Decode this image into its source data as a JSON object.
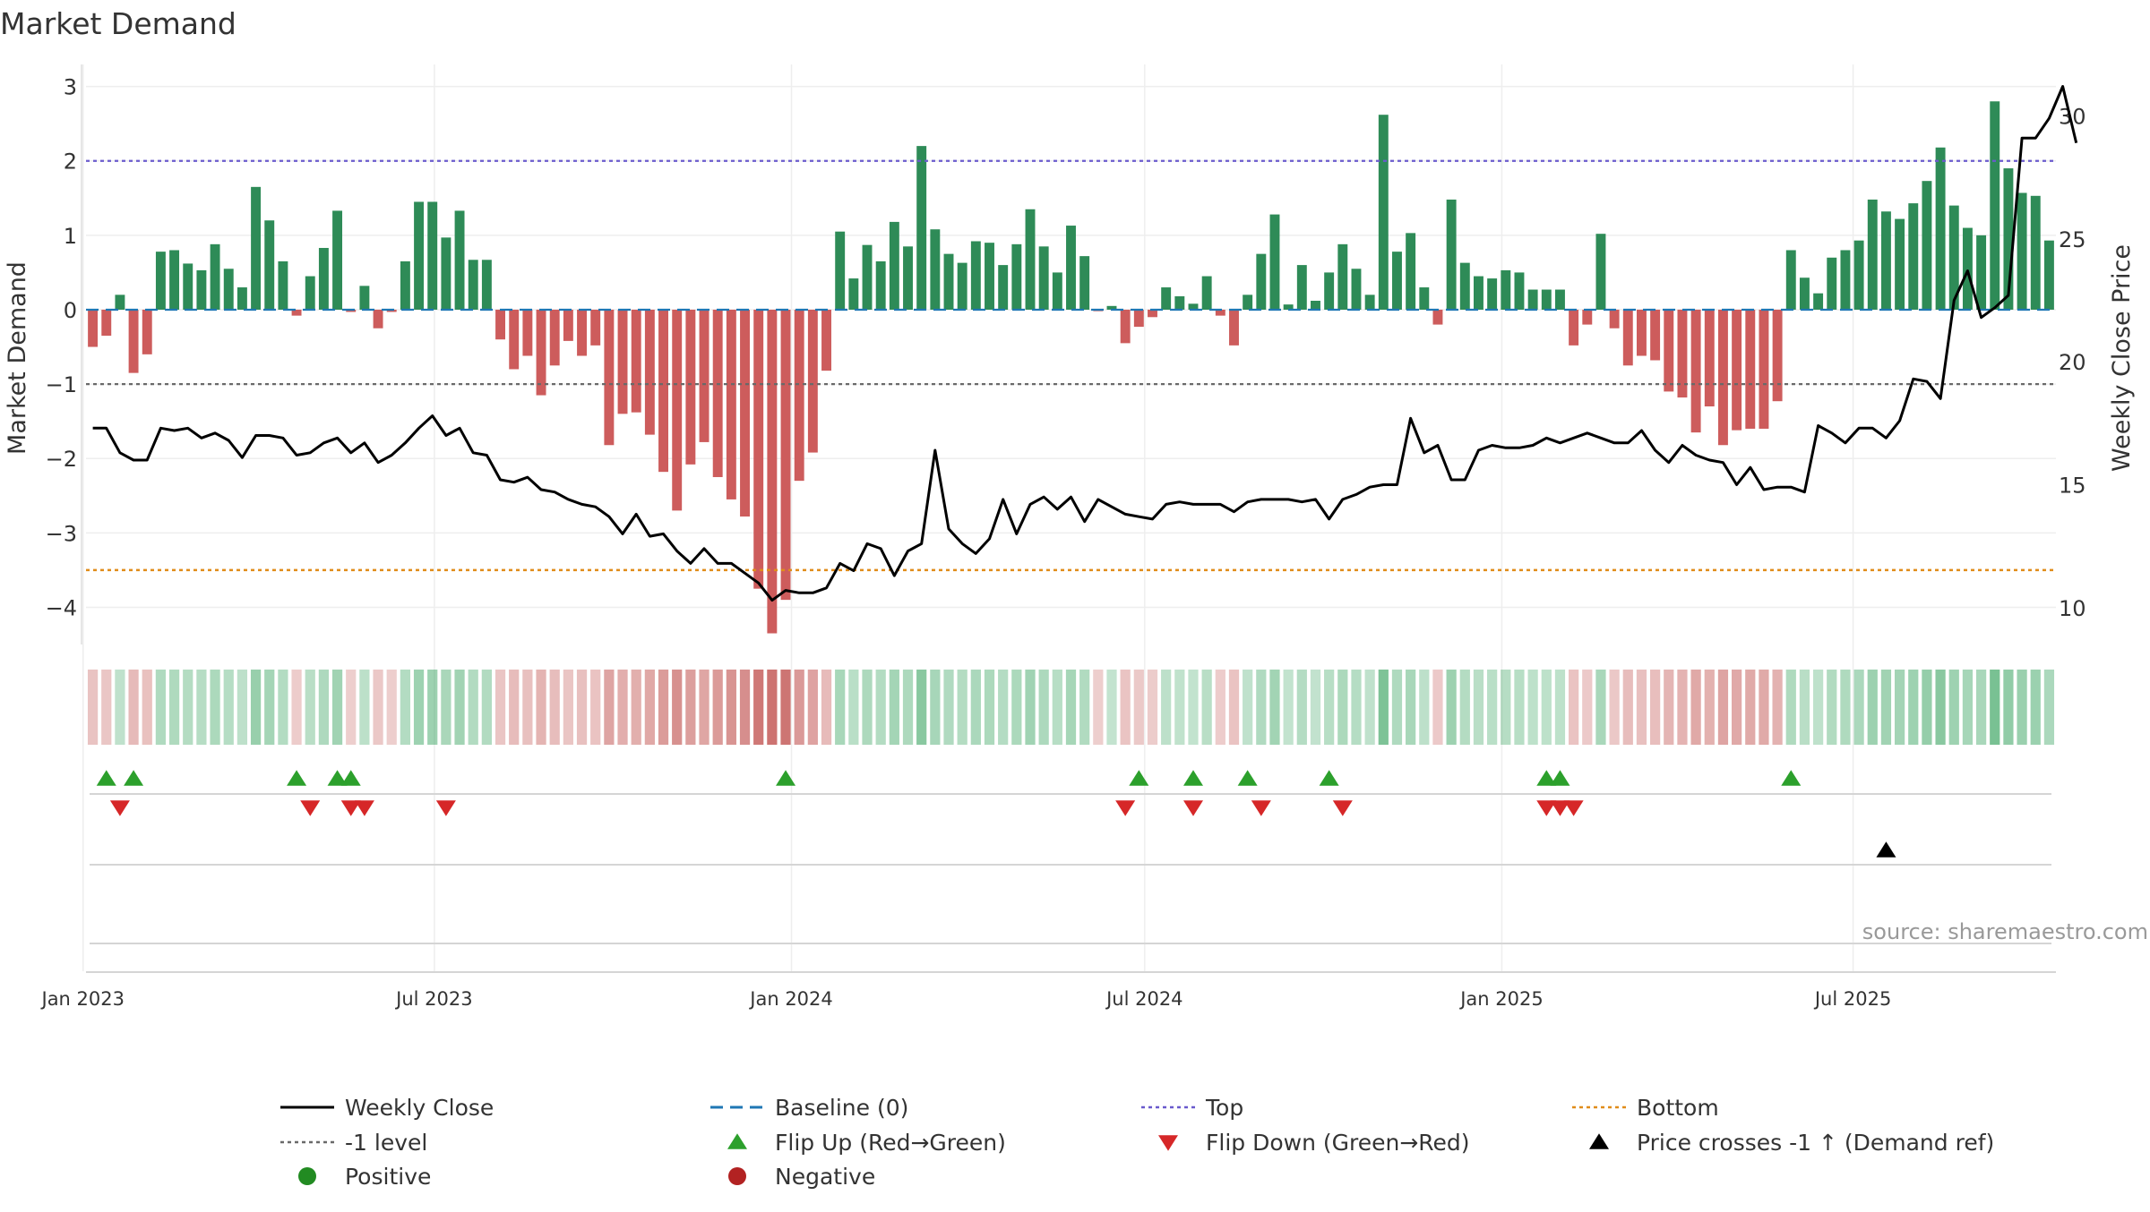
{
  "chart_data": {
    "type": "bar",
    "title": "Market Demand",
    "source": "source: sharemaestro.com",
    "ylabel_left": "Market Demand",
    "ylabel_right": "Weekly Close Price",
    "ylim_left": [
      -4.5,
      3.2
    ],
    "ylim_right": [
      8.5,
      31.8
    ],
    "yticks_left": [
      "3",
      "2",
      "1",
      "0",
      "−1",
      "−2",
      "−3",
      "−4"
    ],
    "yticks_right": [
      "30",
      "25",
      "20",
      "15",
      "10"
    ],
    "reference_levels": {
      "top": 2.0,
      "bottom": -3.5,
      "minus_one": -1.0,
      "baseline": 0.0
    },
    "x_ticks": [
      "Jan 2023",
      "Jul 2023",
      "Jan 2024",
      "Jul 2024",
      "Jan 2025",
      "Jul 2025"
    ],
    "x_start": "2023-01-06",
    "x_frequency": "weekly",
    "demand": [
      -0.5,
      -0.35,
      0.2,
      -0.85,
      -0.6,
      0.78,
      0.8,
      0.62,
      0.53,
      0.88,
      0.55,
      0.3,
      1.65,
      1.2,
      0.65,
      -0.08,
      0.45,
      0.83,
      1.33,
      -0.03,
      0.32,
      -0.25,
      -0.03,
      0.65,
      1.45,
      1.45,
      0.97,
      1.33,
      0.67,
      0.67,
      -0.4,
      -0.8,
      -0.62,
      -1.15,
      -0.75,
      -0.42,
      -0.62,
      -0.48,
      -1.82,
      -1.4,
      -1.38,
      -1.68,
      -2.18,
      -2.7,
      -2.08,
      -1.78,
      -2.25,
      -2.55,
      -2.78,
      -3.75,
      -4.35,
      -3.9,
      -2.3,
      -1.92,
      -0.82,
      1.05,
      0.42,
      0.87,
      0.65,
      1.18,
      0.85,
      2.2,
      1.08,
      0.75,
      0.63,
      0.92,
      0.9,
      0.6,
      0.88,
      1.35,
      0.85,
      0.5,
      1.13,
      0.72,
      -0.02,
      0.05,
      -0.45,
      -0.23,
      -0.1,
      0.3,
      0.18,
      0.08,
      0.45,
      -0.08,
      -0.48,
      0.2,
      0.75,
      1.28,
      0.07,
      0.6,
      0.12,
      0.5,
      0.88,
      0.55,
      0.2,
      2.62,
      0.78,
      1.03,
      0.3,
      -0.2,
      1.48,
      0.63,
      0.45,
      0.42,
      0.53,
      0.5,
      0.27,
      0.27,
      0.27,
      -0.48,
      -0.2,
      1.02,
      -0.25,
      -0.75,
      -0.62,
      -0.68,
      -1.1,
      -1.18,
      -1.65,
      -1.3,
      -1.82,
      -1.62,
      -1.6,
      -1.6,
      -1.23,
      0.8,
      0.43,
      0.22,
      0.7,
      0.8,
      0.93,
      1.48,
      1.32,
      1.22,
      1.43,
      1.73,
      2.18,
      1.4,
      1.1,
      1.0,
      2.8,
      1.9,
      1.57,
      1.53,
      0.93
    ],
    "weekly_close": [
      17.3,
      17.3,
      16.3,
      16.0,
      16.0,
      17.3,
      17.2,
      17.3,
      16.9,
      17.1,
      16.8,
      16.1,
      17.0,
      17.0,
      16.9,
      16.2,
      16.3,
      16.7,
      16.9,
      16.3,
      16.7,
      15.9,
      16.2,
      16.7,
      17.3,
      17.8,
      17.0,
      17.3,
      16.3,
      16.2,
      15.2,
      15.1,
      15.3,
      14.8,
      14.7,
      14.4,
      14.2,
      14.1,
      13.7,
      13.0,
      13.8,
      12.9,
      13.0,
      12.3,
      11.8,
      12.4,
      11.8,
      11.8,
      11.4,
      11.0,
      10.3,
      10.7,
      10.6,
      10.6,
      10.8,
      11.8,
      11.5,
      12.6,
      12.4,
      11.3,
      12.3,
      12.6,
      16.4,
      13.2,
      12.6,
      12.2,
      12.8,
      14.4,
      13.0,
      14.2,
      14.5,
      14.0,
      14.5,
      13.5,
      14.4,
      14.1,
      13.8,
      13.7,
      13.6,
      14.2,
      14.3,
      14.2,
      14.2,
      14.2,
      13.9,
      14.3,
      14.4,
      14.4,
      14.4,
      14.3,
      14.4,
      13.6,
      14.4,
      14.6,
      14.9,
      15.0,
      15.0,
      17.7,
      16.3,
      16.6,
      15.2,
      15.2,
      16.4,
      16.6,
      16.5,
      16.5,
      16.6,
      16.9,
      16.7,
      16.9,
      17.1,
      16.9,
      16.7,
      16.7,
      17.2,
      16.4,
      15.9,
      16.6,
      16.2,
      16.0,
      15.9,
      15.0,
      15.7,
      14.8,
      14.9,
      14.9,
      14.7,
      17.4,
      17.1,
      16.7,
      17.3,
      17.3,
      16.9,
      17.6,
      19.3,
      19.2,
      18.5,
      22.5,
      23.7,
      21.8,
      22.2,
      22.7,
      29.1,
      29.1,
      29.9,
      31.2,
      28.9
    ],
    "heat_levels": [
      -0.5,
      -0.35,
      0.2,
      -0.85,
      -0.6,
      0.78,
      0.8,
      0.62,
      0.53,
      0.88,
      0.55,
      0.3,
      1.65,
      1.2,
      0.65,
      -0.08,
      0.45,
      0.83,
      1.33,
      -0.03,
      0.32,
      -0.25,
      -0.03,
      0.65,
      1.45,
      1.45,
      0.97,
      1.33,
      0.67,
      0.67,
      -0.4,
      -0.8,
      -0.62,
      -1.15,
      -0.75,
      -0.42,
      -0.62,
      -0.48,
      -1.82,
      -1.4,
      -1.38,
      -1.68,
      -2.18,
      -2.7,
      -2.08,
      -1.78,
      -2.25,
      -2.55,
      -2.78,
      -3.75,
      -4.35,
      -3.9,
      -2.3,
      -1.92,
      -0.82,
      1.05,
      0.42,
      0.87,
      0.65,
      1.18,
      0.85,
      2.2,
      1.08,
      0.75,
      0.63,
      0.92,
      0.9,
      0.6,
      0.88,
      1.35,
      0.85,
      0.5,
      1.13,
      0.72,
      -0.02,
      0.05,
      -0.45,
      -0.23,
      -0.1,
      0.3,
      0.18,
      0.08,
      0.45,
      -0.08,
      -0.48,
      0.2,
      0.75,
      1.28,
      0.07,
      0.6,
      0.12,
      0.5,
      0.88,
      0.55,
      0.2,
      2.62,
      0.78,
      1.03,
      0.3,
      -0.2,
      1.48,
      0.63,
      0.45,
      0.42,
      0.53,
      0.5,
      0.27,
      0.27,
      0.27,
      -0.48,
      -0.2,
      1.02,
      -0.25,
      -0.75,
      -0.62,
      -0.68,
      -1.1,
      -1.18,
      -1.65,
      -1.3,
      -1.82,
      -1.62,
      -1.6,
      -1.6,
      -1.23,
      0.8,
      0.43,
      0.22,
      0.7,
      0.8,
      0.93,
      1.48,
      1.32,
      1.22,
      1.43,
      1.73,
      2.18,
      1.4,
      1.1,
      1.0,
      2.8,
      1.9,
      1.57,
      1.53,
      0.93
    ],
    "flip_up_dates": [
      "2023-01-13",
      "2023-01-27",
      "2023-04-21",
      "2023-05-12",
      "2023-05-19",
      "2023-12-29",
      "2024-06-28",
      "2024-07-26",
      "2024-08-23",
      "2024-10-04",
      "2025-01-24",
      "2025-01-31",
      "2025-05-30"
    ],
    "flip_down_dates": [
      "2023-01-20",
      "2023-04-28",
      "2023-05-19",
      "2023-05-26",
      "2023-07-07",
      "2024-06-21",
      "2024-07-26",
      "2024-08-30",
      "2024-10-11",
      "2025-01-24",
      "2025-01-31",
      "2025-02-07"
    ],
    "price_cross_dates": [
      "2025-07-18"
    ],
    "colors": {
      "positive": "#2e8b57",
      "negative": "#cd5c5c",
      "price": "#000000",
      "baseline": "#1f77b4",
      "top": "#6a5acd",
      "minus_one": "#696969",
      "bottom": "#e08c1a",
      "flip_up": "#2ca02c",
      "flip_down": "#d62728"
    },
    "legend": [
      {
        "label": "Weekly Close",
        "marker": "solid-line",
        "color": "#000000"
      },
      {
        "label": "Baseline (0)",
        "marker": "dashed-line",
        "color": "#1f77b4"
      },
      {
        "label": "Top",
        "marker": "dotted-line",
        "color": "#6a5acd"
      },
      {
        "label": "Bottom",
        "marker": "dotted-line",
        "color": "#e08c1a"
      },
      {
        "label": "-1 level",
        "marker": "dotted-line",
        "color": "#696969"
      },
      {
        "label": "Flip Up (Red→Green)",
        "marker": "triangle-up",
        "color": "#2ca02c"
      },
      {
        "label": "Flip Down (Green→Red)",
        "marker": "triangle-down",
        "color": "#d62728"
      },
      {
        "label": "Price crosses -1 ↑ (Demand ref)",
        "marker": "triangle-up",
        "color": "#000000"
      },
      {
        "label": "Positive",
        "marker": "circle",
        "color": "#228b22"
      },
      {
        "label": "Negative",
        "marker": "circle",
        "color": "#b22222"
      }
    ]
  }
}
